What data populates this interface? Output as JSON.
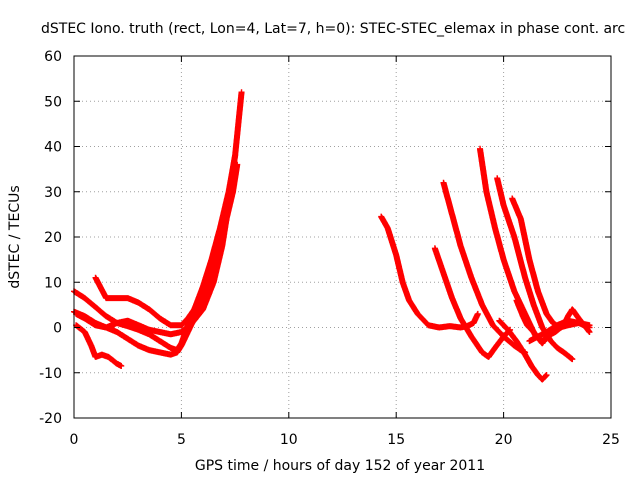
{
  "chart_data": {
    "type": "scatter",
    "title": "dSTEC Iono. truth (rect, Lon=4, Lat=7, h=0): STEC-STEC_elemax in phase cont. arc",
    "xlabel": "GPS time / hours of day 152 of year 2011",
    "ylabel": "dSTEC  / TECUs",
    "xlim": [
      0,
      25
    ],
    "ylim": [
      -20,
      60
    ],
    "xticks": [
      "0",
      "5",
      "10",
      "15",
      "20",
      "25"
    ],
    "yticks": [
      "-20",
      "-10",
      "0",
      "10",
      "20",
      "30",
      "40",
      "50",
      "60"
    ],
    "grid": true,
    "marker": "+",
    "color": "#ff0000",
    "series": [
      {
        "points": [
          [
            0.0,
            8.0
          ],
          [
            0.5,
            6.5
          ],
          [
            1.0,
            4.5
          ],
          [
            1.5,
            2.5
          ],
          [
            2.0,
            1.0
          ],
          [
            2.5,
            0.3
          ],
          [
            3.0,
            -0.5
          ],
          [
            3.5,
            -1.5
          ],
          [
            4.0,
            -3.0
          ],
          [
            4.5,
            -4.5
          ],
          [
            4.8,
            -5.0
          ],
          [
            5.0,
            -3.5
          ],
          [
            5.3,
            0.5
          ],
          [
            5.6,
            4.0
          ],
          [
            6.0,
            9.0
          ],
          [
            6.4,
            15.0
          ],
          [
            6.8,
            22.0
          ],
          [
            7.2,
            30.0
          ],
          [
            7.5,
            38.0
          ],
          [
            7.8,
            52.0
          ]
        ]
      },
      {
        "points": [
          [
            0.0,
            3.5
          ],
          [
            0.5,
            2.5
          ],
          [
            1.0,
            1.0
          ],
          [
            1.5,
            0.0
          ],
          [
            2.0,
            -1.0
          ],
          [
            2.5,
            -2.5
          ],
          [
            3.0,
            -4.0
          ],
          [
            3.5,
            -5.0
          ],
          [
            4.0,
            -5.5
          ],
          [
            4.5,
            -6.0
          ],
          [
            4.8,
            -5.5
          ],
          [
            5.0,
            -4.0
          ],
          [
            5.3,
            -1.0
          ],
          [
            5.6,
            2.0
          ],
          [
            6.0,
            6.0
          ],
          [
            6.5,
            13.0
          ],
          [
            7.0,
            22.0
          ],
          [
            7.3,
            32.0
          ],
          [
            7.5,
            38.0
          ]
        ]
      },
      {
        "points": [
          [
            0.1,
            0.5
          ],
          [
            0.5,
            -1.0
          ],
          [
            0.8,
            -4.0
          ],
          [
            1.0,
            -6.5
          ],
          [
            1.3,
            -6.0
          ],
          [
            1.6,
            -6.5
          ],
          [
            2.0,
            -8.0
          ],
          [
            2.2,
            -8.5
          ]
        ]
      },
      {
        "points": [
          [
            0.1,
            3.0
          ],
          [
            0.5,
            2.0
          ],
          [
            1.0,
            0.5
          ],
          [
            1.5,
            0.0
          ],
          [
            2.0,
            1.0
          ],
          [
            2.5,
            1.5
          ],
          [
            3.0,
            0.5
          ],
          [
            3.5,
            -0.5
          ],
          [
            4.0,
            -1.0
          ],
          [
            4.5,
            -1.5
          ],
          [
            5.0,
            -1.0
          ],
          [
            5.5,
            1.0
          ],
          [
            6.0,
            4.0
          ],
          [
            6.5,
            10.0
          ],
          [
            6.9,
            18.0
          ],
          [
            7.1,
            24.0
          ]
        ]
      },
      {
        "points": [
          [
            1.0,
            11.0
          ],
          [
            1.5,
            6.5
          ],
          [
            2.0,
            6.5
          ],
          [
            2.5,
            6.5
          ],
          [
            3.0,
            5.5
          ],
          [
            3.5,
            4.0
          ],
          [
            4.0,
            2.0
          ],
          [
            4.5,
            0.5
          ],
          [
            5.0,
            0.5
          ],
          [
            5.3,
            2.0
          ],
          [
            5.6,
            4.0
          ],
          [
            6.0,
            8.0
          ],
          [
            6.5,
            14.0
          ],
          [
            7.0,
            22.0
          ],
          [
            7.4,
            30.0
          ],
          [
            7.6,
            36.0
          ]
        ]
      },
      {
        "points": [
          [
            14.3,
            24.5
          ],
          [
            14.6,
            22.0
          ],
          [
            15.0,
            16.0
          ],
          [
            15.3,
            10.0
          ],
          [
            15.6,
            6.0
          ],
          [
            16.0,
            3.0
          ],
          [
            16.5,
            0.5
          ],
          [
            17.0,
            0.0
          ],
          [
            17.5,
            0.3
          ],
          [
            18.0,
            0.0
          ],
          [
            18.3,
            0.3
          ],
          [
            18.6,
            1.0
          ],
          [
            18.8,
            3.0
          ]
        ]
      },
      {
        "points": [
          [
            16.8,
            17.5
          ],
          [
            17.2,
            12.0
          ],
          [
            17.6,
            6.5
          ],
          [
            18.0,
            2.0
          ],
          [
            18.5,
            -2.0
          ],
          [
            19.0,
            -5.5
          ],
          [
            19.3,
            -6.5
          ],
          [
            19.6,
            -4.5
          ],
          [
            20.0,
            -2.0
          ],
          [
            20.3,
            -0.5
          ]
        ]
      },
      {
        "points": [
          [
            17.2,
            32.0
          ],
          [
            17.6,
            25.0
          ],
          [
            18.0,
            18.0
          ],
          [
            18.5,
            11.0
          ],
          [
            19.0,
            5.0
          ],
          [
            19.5,
            0.5
          ],
          [
            20.0,
            -2.0
          ],
          [
            20.5,
            -4.0
          ],
          [
            20.8,
            -5.0
          ],
          [
            21.0,
            -5.5
          ]
        ]
      },
      {
        "points": [
          [
            18.9,
            39.5
          ],
          [
            19.2,
            30.0
          ],
          [
            19.6,
            22.0
          ],
          [
            20.0,
            15.0
          ],
          [
            20.5,
            8.0
          ],
          [
            21.0,
            3.0
          ],
          [
            21.3,
            0.0
          ],
          [
            21.5,
            -2.0
          ],
          [
            21.8,
            -3.0
          ],
          [
            22.0,
            -2.5
          ]
        ]
      },
      {
        "points": [
          [
            19.7,
            33.0
          ],
          [
            20.0,
            27.0
          ],
          [
            20.5,
            20.0
          ],
          [
            21.0,
            11.0
          ],
          [
            21.4,
            5.0
          ],
          [
            21.8,
            0.0
          ],
          [
            22.2,
            -3.0
          ],
          [
            22.5,
            -4.5
          ],
          [
            22.8,
            -5.5
          ],
          [
            23.2,
            -7.0
          ]
        ]
      },
      {
        "points": [
          [
            20.4,
            28.5
          ],
          [
            20.8,
            24.0
          ],
          [
            21.2,
            15.0
          ],
          [
            21.6,
            8.0
          ],
          [
            22.0,
            3.0
          ],
          [
            22.3,
            1.0
          ],
          [
            22.6,
            0.0
          ],
          [
            23.0,
            0.5
          ],
          [
            23.5,
            1.0
          ],
          [
            24.0,
            0.0
          ]
        ]
      },
      {
        "points": [
          [
            20.6,
            6.0
          ],
          [
            20.9,
            2.5
          ],
          [
            21.1,
            0.5
          ],
          [
            21.4,
            -1.0
          ],
          [
            21.8,
            -3.5
          ],
          [
            22.0,
            -2.0
          ],
          [
            22.4,
            -1.0
          ],
          [
            22.8,
            0.5
          ],
          [
            23.0,
            2.5
          ],
          [
            23.2,
            4.0
          ],
          [
            23.5,
            2.0
          ],
          [
            24.0,
            -1.0
          ]
        ]
      },
      {
        "points": [
          [
            19.8,
            1.5
          ],
          [
            20.2,
            -0.5
          ],
          [
            20.6,
            -3.0
          ],
          [
            21.0,
            -6.0
          ],
          [
            21.3,
            -8.5
          ],
          [
            21.6,
            -10.5
          ],
          [
            21.8,
            -11.5
          ],
          [
            22.0,
            -10.5
          ]
        ]
      },
      {
        "points": [
          [
            21.2,
            -3.0
          ],
          [
            21.6,
            -2.0
          ],
          [
            22.0,
            -1.0
          ],
          [
            22.5,
            0.5
          ],
          [
            23.0,
            1.5
          ],
          [
            23.5,
            1.0
          ],
          [
            24.0,
            0.5
          ]
        ]
      }
    ]
  }
}
